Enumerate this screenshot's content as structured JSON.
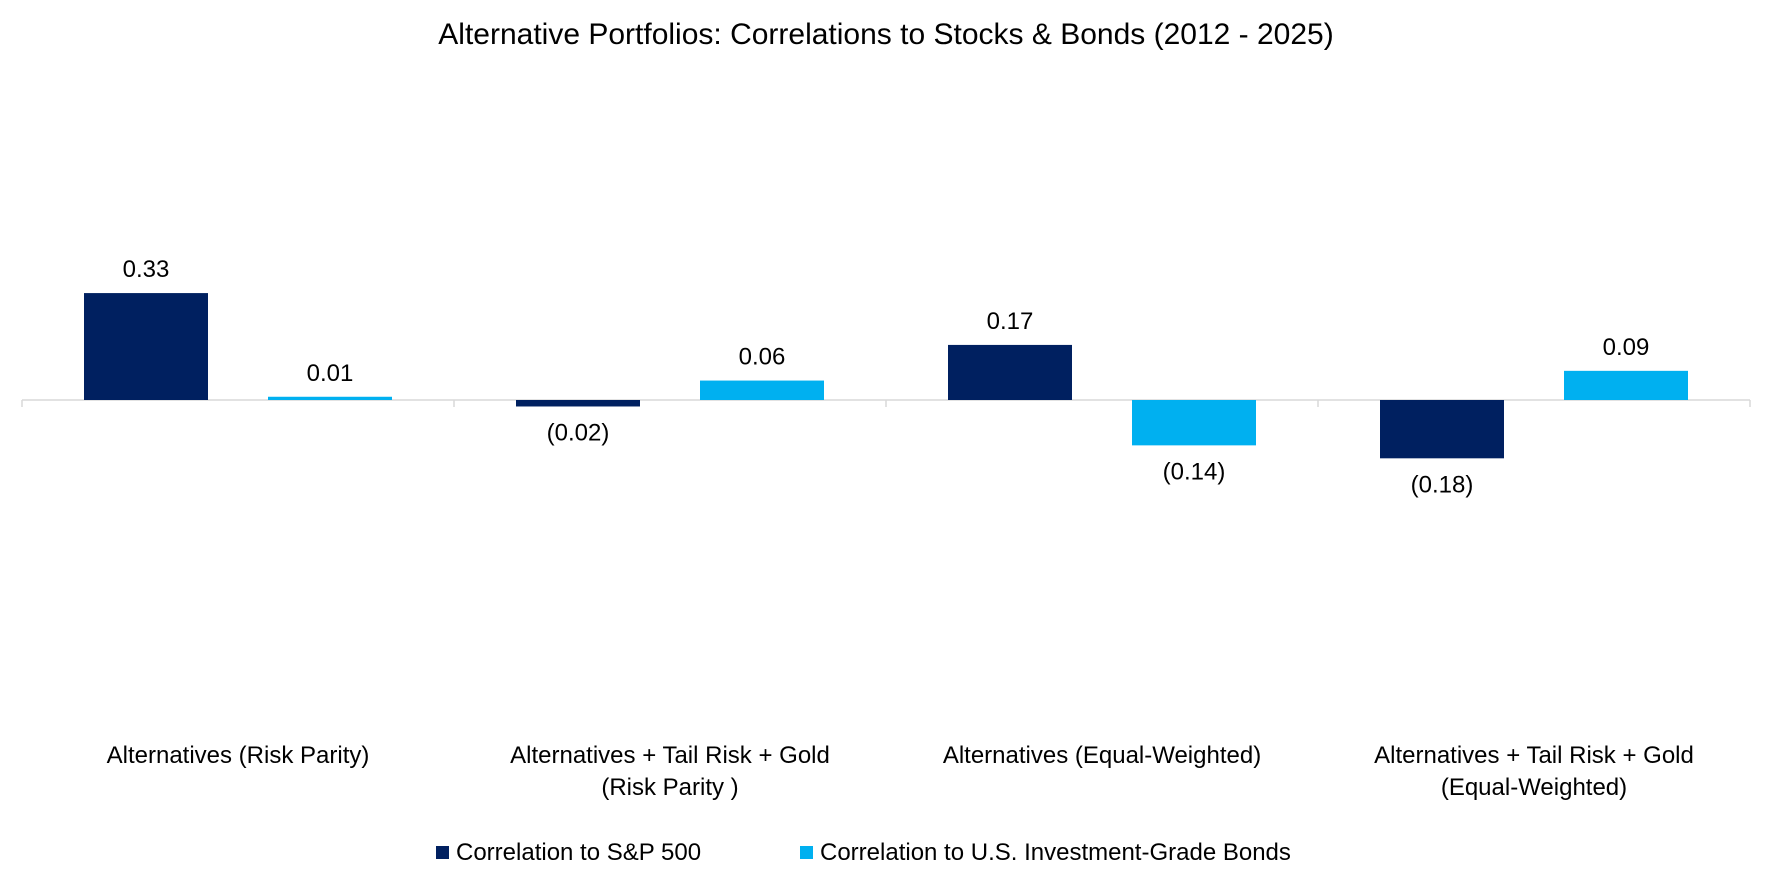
{
  "chart_data": {
    "type": "bar",
    "title": "Alternative Portfolios: Correlations to Stocks & Bonds (2012 - 2025)",
    "categories": [
      [
        "Alternatives (Risk Parity)"
      ],
      [
        "Alternatives + Tail Risk + Gold",
        "(Risk Parity )"
      ],
      [
        "Alternatives (Equal-Weighted)"
      ],
      [
        "Alternatives + Tail Risk + Gold",
        "(Equal-Weighted)"
      ]
    ],
    "series": [
      {
        "name": "Correlation to S&P 500",
        "color": "#002060",
        "values": [
          0.33,
          -0.02,
          0.17,
          -0.18
        ],
        "labels": [
          "0.33",
          "(0.02)",
          "0.17",
          "(0.18)"
        ]
      },
      {
        "name": "Correlation to U.S. Investment-Grade Bonds",
        "color": "#00B0F0",
        "values": [
          0.01,
          0.06,
          -0.14,
          0.09
        ],
        "labels": [
          "0.01",
          "0.06",
          "(0.14)",
          "0.09"
        ]
      }
    ],
    "ylim": [
      -0.5,
      0.5
    ],
    "xlabel": "",
    "ylabel": "",
    "grid": false,
    "legend_position": "bottom-center"
  }
}
